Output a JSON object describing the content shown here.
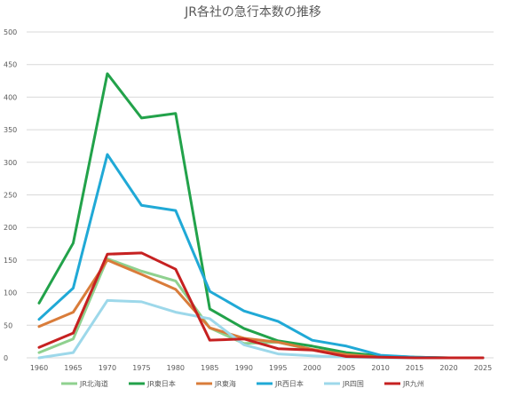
{
  "chart_data": {
    "type": "line",
    "title": "JR各社の急行本数の推移",
    "xlabel": "",
    "ylabel": "",
    "x": [
      1960,
      1965,
      1970,
      1975,
      1980,
      1985,
      1990,
      1995,
      2000,
      2005,
      2010,
      2015,
      2020,
      2025
    ],
    "ylim": [
      0,
      500
    ],
    "yticks": [
      0,
      50,
      100,
      150,
      200,
      250,
      300,
      350,
      400,
      450,
      500
    ],
    "grid": true,
    "legend_position": "bottom",
    "series": [
      {
        "name": "JR北海道",
        "color": "#8fd18f",
        "values": [
          8,
          29,
          152,
          133,
          118,
          46,
          22,
          24,
          12,
          4,
          2,
          0,
          0,
          0
        ]
      },
      {
        "name": "JR東日本",
        "color": "#22a24a",
        "values": [
          84,
          176,
          436,
          368,
          375,
          75,
          45,
          26,
          18,
          8,
          3,
          1,
          0,
          0
        ]
      },
      {
        "name": "JR東海",
        "color": "#d97c3a",
        "values": [
          48,
          70,
          150,
          128,
          105,
          46,
          30,
          24,
          13,
          5,
          1,
          0,
          0,
          0
        ]
      },
      {
        "name": "JR西日本",
        "color": "#20a9d6",
        "values": [
          59,
          107,
          312,
          234,
          226,
          102,
          72,
          56,
          27,
          18,
          4,
          1,
          0,
          0
        ]
      },
      {
        "name": "JR四国",
        "color": "#9dd8ea",
        "values": [
          0,
          8,
          88,
          86,
          70,
          60,
          20,
          6,
          3,
          1,
          0,
          0,
          0,
          0
        ]
      },
      {
        "name": "JR九州",
        "color": "#c62121",
        "values": [
          16,
          38,
          159,
          161,
          136,
          27,
          29,
          14,
          12,
          2,
          1,
          0,
          0,
          0
        ]
      }
    ]
  }
}
